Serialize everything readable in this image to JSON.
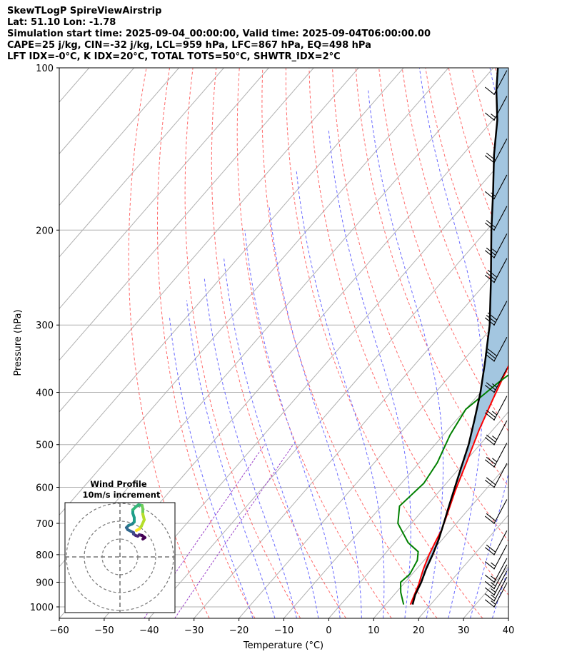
{
  "header": {
    "line1": "SkewTLogP SpireViewAirstrip",
    "line2": "Lat: 51.10   Lon: -1.78",
    "line3": "Simulation start time: 2025-09-04_00:00:00, Valid time: 2025-09-04T06:00:00.00",
    "line4": "CAPE=25 j/kg, CIN=-32 j/kg, LCL=959 hPa, LFC=867 hPa, EQ=498 hPa",
    "line5": "LFT IDX=-0°C, K IDX=20°C, TOTAL TOTS=50°C, SHWTR_IDX=2°C"
  },
  "chart_data": {
    "type": "line",
    "subtype": "skew-t log-p",
    "xlabel": "Temperature (°C)",
    "ylabel": "Pressure (hPa)",
    "xlim": [
      -60,
      40
    ],
    "ylim": [
      1050,
      100
    ],
    "y_scale": "log",
    "grid": true,
    "x_ticks": [
      "−60",
      "−50",
      "−40",
      "−30",
      "−20",
      "−10",
      "0",
      "10",
      "20",
      "30",
      "40"
    ],
    "y_ticks": [
      "100",
      "200",
      "300",
      "400",
      "500",
      "600",
      "700",
      "800",
      "900",
      "1000"
    ],
    "series": [
      {
        "key": "temperature",
        "color": "#ff0000",
        "points": [
          [
            15.5,
            990
          ],
          [
            14.5,
            950
          ],
          [
            13.5,
            910
          ],
          [
            12.5,
            880
          ],
          [
            11.5,
            850
          ],
          [
            10,
            800
          ],
          [
            9,
            760
          ],
          [
            8,
            720
          ],
          [
            6.5,
            680
          ],
          [
            3.5,
            610
          ],
          [
            0.5,
            540
          ],
          [
            -3,
            470
          ],
          [
            -6,
            410
          ],
          [
            -9,
            355
          ],
          [
            -10,
            320
          ],
          [
            -10,
            295
          ],
          [
            -8.5,
            270
          ],
          [
            -6.5,
            250
          ],
          [
            -4,
            230
          ],
          [
            -1,
            215
          ],
          [
            1.5,
            195
          ],
          [
            3,
            175
          ],
          [
            5,
            155
          ],
          [
            7,
            140
          ],
          [
            8,
            127
          ],
          [
            9,
            117
          ],
          [
            10,
            106
          ],
          [
            10,
            100
          ]
        ]
      },
      {
        "key": "dewpoint",
        "color": "#008000",
        "points": [
          [
            14,
            990
          ],
          [
            11,
            940
          ],
          [
            9,
            900
          ],
          [
            9.5,
            870
          ],
          [
            8.5,
            820
          ],
          [
            7,
            790
          ],
          [
            3,
            760
          ],
          [
            -3,
            700
          ],
          [
            -6,
            650
          ],
          [
            -5,
            590
          ],
          [
            -6,
            540
          ],
          [
            -8.5,
            480
          ],
          [
            -10,
            430
          ],
          [
            -8,
            385
          ],
          [
            -6,
            355
          ],
          [
            -8.5,
            315
          ],
          [
            -11.5,
            275
          ],
          [
            -14,
            240
          ],
          [
            -17,
            216
          ],
          [
            -19,
            200
          ],
          [
            -20,
            183
          ],
          [
            -21,
            160
          ],
          [
            -23,
            142
          ],
          [
            -25,
            128
          ],
          [
            -27,
            115
          ],
          [
            -29,
            104
          ],
          [
            -30,
            100
          ]
        ]
      },
      {
        "key": "parcel",
        "color": "#000000",
        "points": [
          [
            16,
            990
          ],
          [
            14.7,
            950
          ],
          [
            13.6,
            900
          ],
          [
            12.1,
            850
          ],
          [
            10.8,
            800
          ],
          [
            9.2,
            750
          ],
          [
            7.2,
            700
          ],
          [
            5,
            650
          ],
          [
            2.7,
            600
          ],
          [
            0.2,
            550
          ],
          [
            -2.5,
            500
          ],
          [
            -6,
            450
          ],
          [
            -10,
            400
          ],
          [
            -15,
            350
          ],
          [
            -21,
            300
          ],
          [
            -29,
            250
          ],
          [
            -39,
            200
          ],
          [
            -46,
            170
          ],
          [
            -53,
            145
          ],
          [
            -59,
            125
          ],
          [
            -65,
            110
          ],
          [
            -69,
            100
          ]
        ]
      }
    ],
    "wind_barbs": [
      {
        "p": 1000,
        "kt": 15
      },
      {
        "p": 975,
        "kt": 15
      },
      {
        "p": 950,
        "kt": 15
      },
      {
        "p": 925,
        "kt": 15
      },
      {
        "p": 900,
        "kt": 15
      },
      {
        "p": 850,
        "kt": 15
      },
      {
        "p": 800,
        "kt": 20
      },
      {
        "p": 700,
        "kt": 20
      },
      {
        "p": 600,
        "kt": 20
      },
      {
        "p": 550,
        "kt": 25
      },
      {
        "p": 500,
        "kt": 25
      },
      {
        "p": 450,
        "kt": 25
      },
      {
        "p": 400,
        "kt": 25
      },
      {
        "p": 350,
        "kt": 30
      },
      {
        "p": 300,
        "kt": 30
      },
      {
        "p": 250,
        "kt": 30
      },
      {
        "p": 225,
        "kt": 25
      },
      {
        "p": 200,
        "kt": 20
      },
      {
        "p": 175,
        "kt": 15
      },
      {
        "p": 150,
        "kt": 20
      },
      {
        "p": 125,
        "kt": 15
      },
      {
        "p": 112,
        "kt": 10
      }
    ],
    "inset": {
      "title": "Wind Profile",
      "subtitle": "10m/s increment"
    }
  }
}
